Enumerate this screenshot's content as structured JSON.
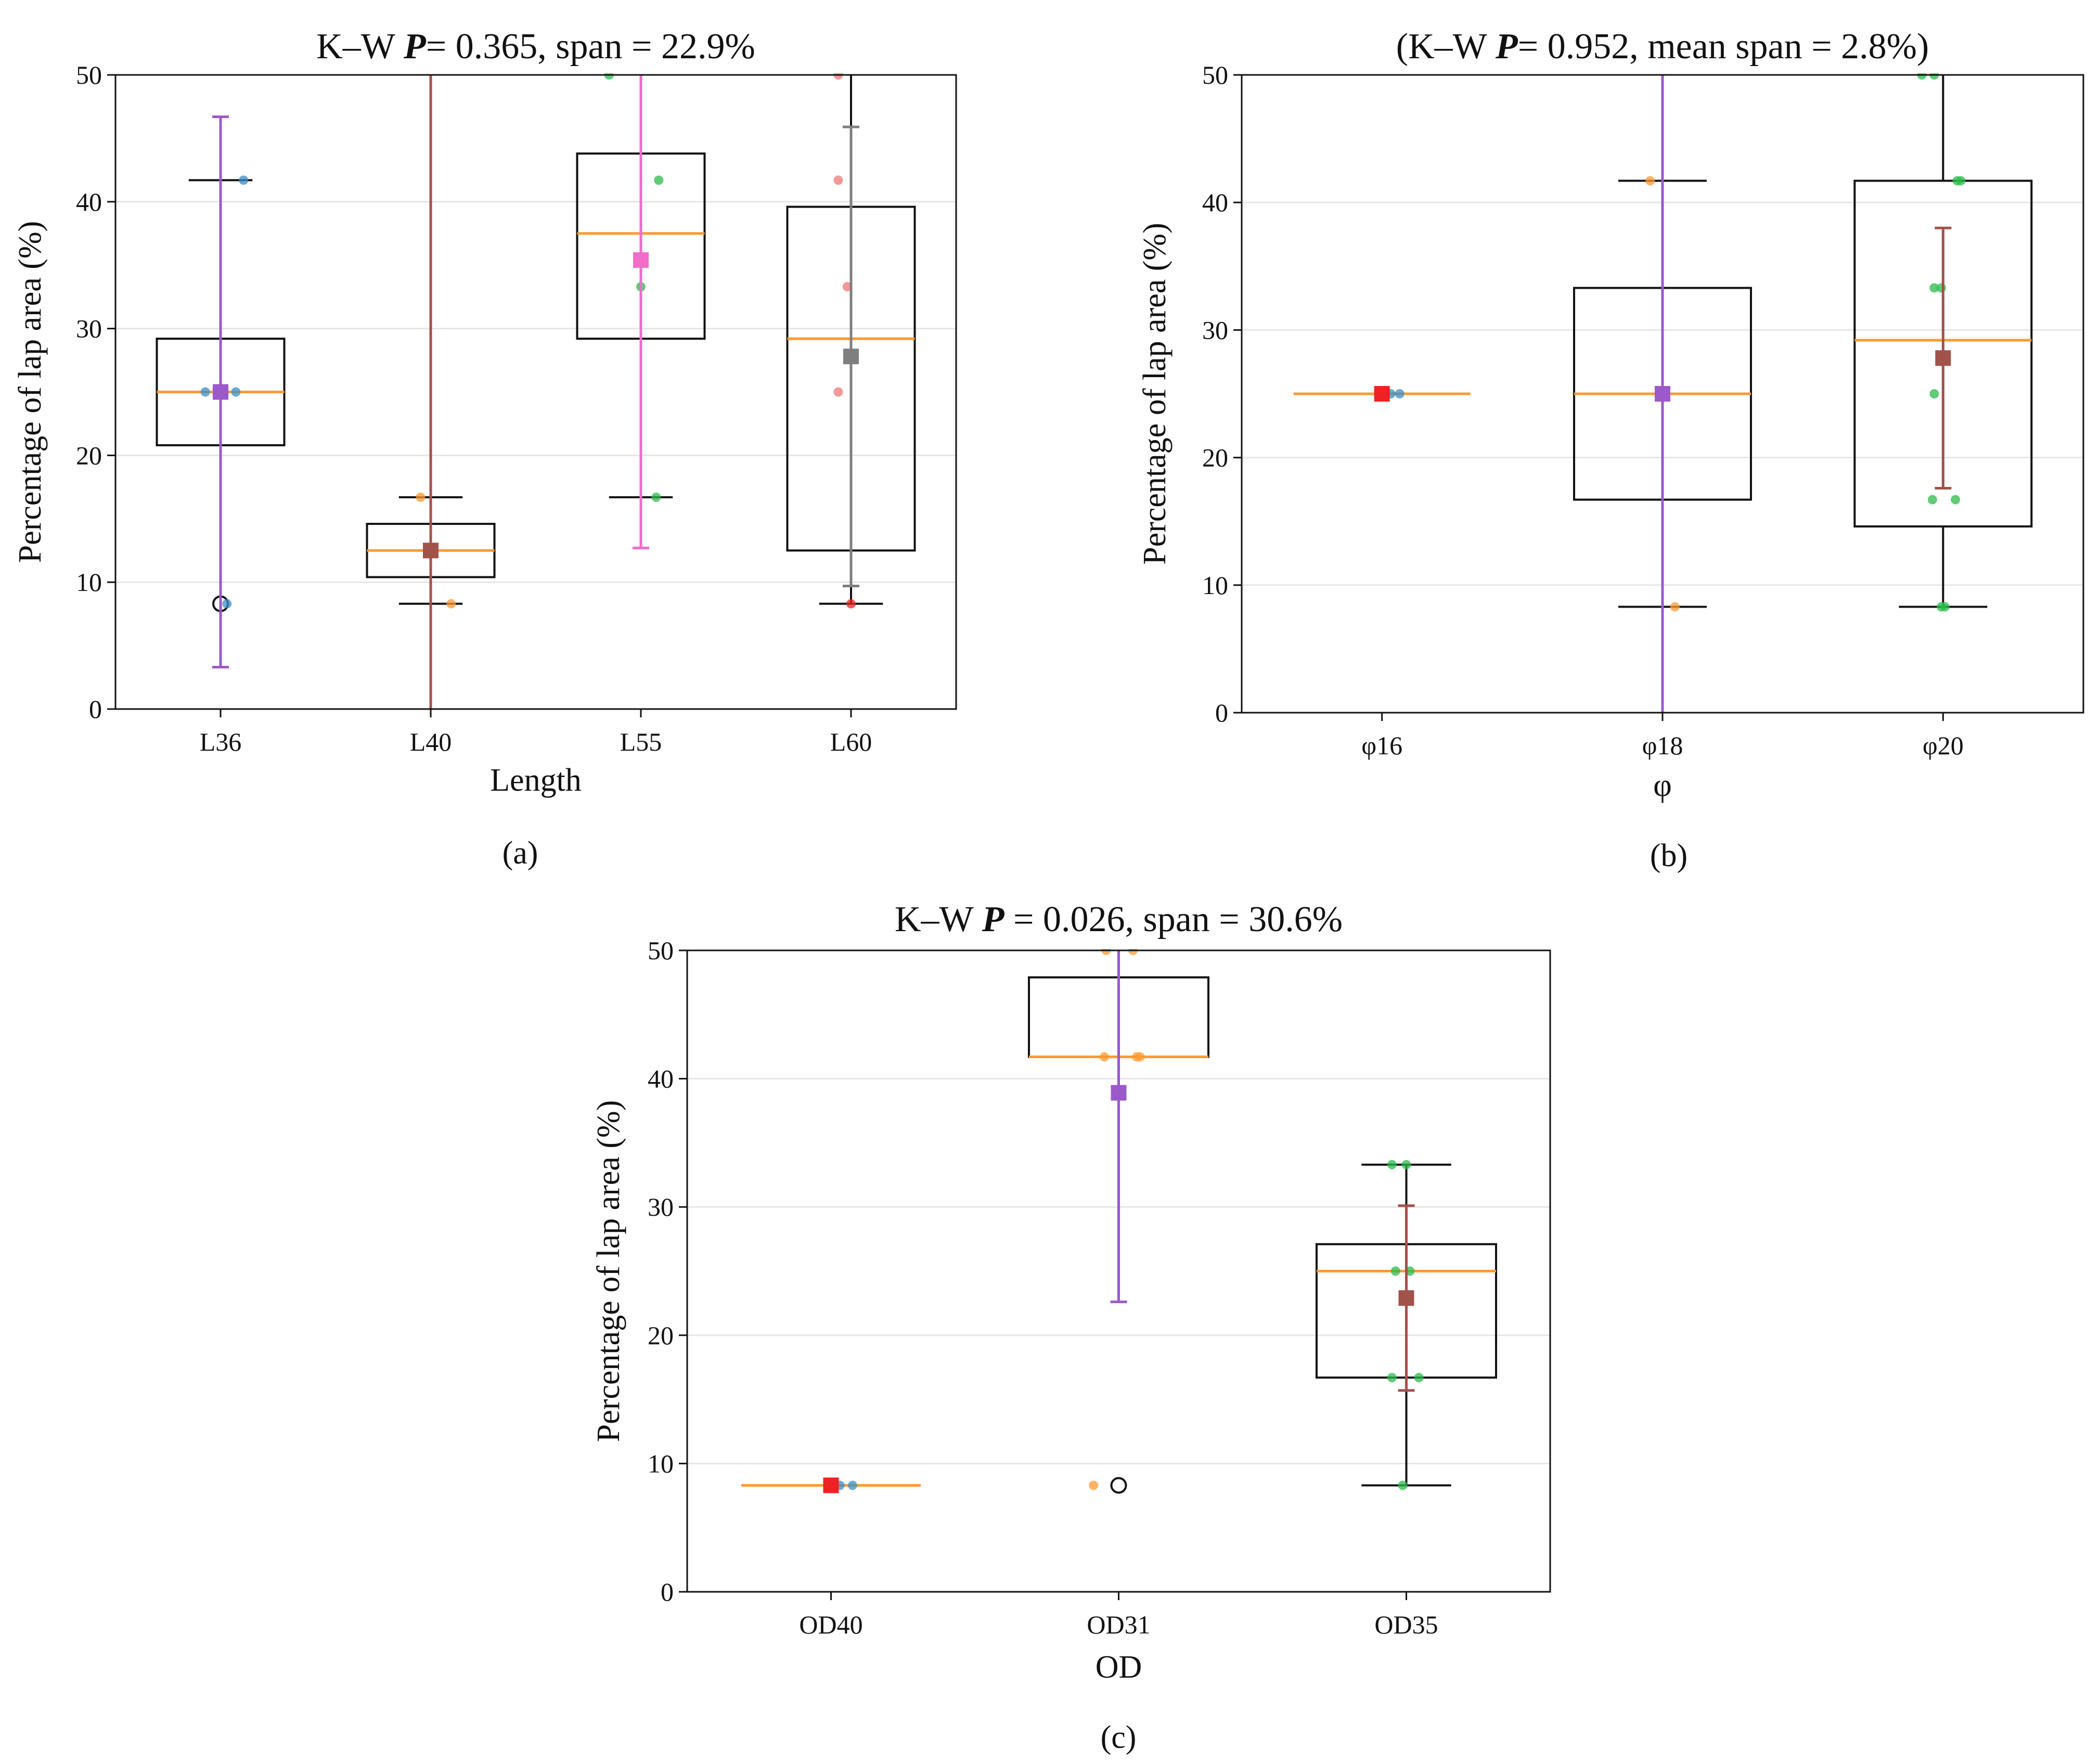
{
  "colors": {
    "purple": "#9b59c9",
    "brown": "#a0524b",
    "pink": "#f06dc9",
    "gray": "#7f7f7f",
    "red": "#ee2222",
    "orange": "#ff9933",
    "blue": "#3a8fc6",
    "green": "#2cbb4a",
    "salmon": "#ee7777",
    "grid": "#e6e6e6"
  },
  "chart_data": [
    {
      "id": "a",
      "type": "box",
      "caption": "(a)",
      "title": {
        "pre": "K–W ",
        "p": "P",
        "post": "= 0.365, span = 22.9%"
      },
      "xlabel": "Length",
      "ylabel": "Percentage of lap area (%)",
      "ylim": [
        0,
        50
      ],
      "yticks": [
        0,
        10,
        20,
        30,
        40,
        50
      ],
      "categories": [
        "L36",
        "L40",
        "L55",
        "L60"
      ],
      "boxes": [
        {
          "q1": 20.8,
          "median": 25.0,
          "q3": 29.2,
          "whisker_low": null,
          "whisker_high": 41.7,
          "mean": 25.0,
          "ci": [
            3.3,
            46.7
          ],
          "mean_color": "purple",
          "outliers": [
            8.3
          ],
          "points": [
            {
              "y": 25.0,
              "dx": -0.12,
              "c": "blue"
            },
            {
              "y": 25.0,
              "dx": 0.12,
              "c": "blue"
            },
            {
              "y": 41.7,
              "dx": 0.18,
              "c": "blue"
            },
            {
              "y": 8.3,
              "dx": 0.05,
              "c": "blue"
            }
          ]
        },
        {
          "q1": 10.4,
          "median": 12.5,
          "q3": 14.6,
          "whisker_low": 8.3,
          "whisker_high": 16.7,
          "mean": 12.5,
          "ci": [
            0,
            50
          ],
          "mean_color": "brown",
          "outliers": [],
          "points": [
            {
              "y": 16.7,
              "dx": -0.08,
              "c": "orange"
            },
            {
              "y": 8.3,
              "dx": 0.16,
              "c": "orange"
            }
          ]
        },
        {
          "q1": 29.2,
          "median": 37.5,
          "q3": 43.8,
          "whisker_low": 16.7,
          "whisker_high": null,
          "mean": 35.4,
          "ci": [
            12.7,
            50
          ],
          "mean_color": "pink",
          "outliers": [],
          "points": [
            {
              "y": 50.0,
              "dx": -0.25,
              "c": "green"
            },
            {
              "y": 41.7,
              "dx": 0.14,
              "c": "green"
            },
            {
              "y": 33.3,
              "dx": 0.0,
              "c": "green"
            },
            {
              "y": 16.7,
              "dx": 0.12,
              "c": "green"
            }
          ]
        },
        {
          "q1": 12.5,
          "median": 29.2,
          "q3": 39.6,
          "whisker_low": 8.3,
          "whisker_high": null,
          "mean": 27.8,
          "ci": [
            9.7,
            45.9
          ],
          "mean_color": "gray",
          "outliers": [],
          "points": [
            {
              "y": 50.0,
              "dx": -0.1,
              "c": "salmon"
            },
            {
              "y": 41.7,
              "dx": -0.1,
              "c": "salmon"
            },
            {
              "y": 33.3,
              "dx": -0.03,
              "c": "salmon"
            },
            {
              "y": 25.0,
              "dx": -0.1,
              "c": "salmon"
            },
            {
              "y": 8.3,
              "dx": 0.0,
              "c": "red"
            }
          ]
        }
      ]
    },
    {
      "id": "b",
      "type": "box",
      "caption": "(b)",
      "title": {
        "pre": "(K–W ",
        "p": "P",
        "post": "= 0.952, mean span = 2.8%)"
      },
      "xlabel": "φ",
      "ylabel": "Percentage of lap area (%)",
      "ylim": [
        0,
        50
      ],
      "yticks": [
        0,
        10,
        20,
        30,
        40,
        50
      ],
      "categories": [
        "φ16",
        "φ18",
        "φ20"
      ],
      "boxes": [
        {
          "q1": 25.0,
          "median": 25.0,
          "q3": 25.0,
          "whisker_low": null,
          "whisker_high": null,
          "mean": 25.0,
          "ci": null,
          "mean_color": "red",
          "outliers": [],
          "points": [
            {
              "y": 25.0,
              "dx": 0.05,
              "c": "blue"
            },
            {
              "y": 25.0,
              "dx": 0.1,
              "c": "blue"
            }
          ]
        },
        {
          "q1": 16.7,
          "median": 25.0,
          "q3": 33.3,
          "whisker_low": 8.3,
          "whisker_high": 41.7,
          "mean": 25.0,
          "ci": [
            0,
            50
          ],
          "mean_color": "purple",
          "outliers": [],
          "points": [
            {
              "y": 41.7,
              "dx": -0.07,
              "c": "orange"
            },
            {
              "y": 8.3,
              "dx": 0.07,
              "c": "orange"
            }
          ]
        },
        {
          "q1": 14.6,
          "median": 29.2,
          "q3": 41.7,
          "whisker_low": 8.3,
          "whisker_high": null,
          "mean": 27.8,
          "ci": [
            17.6,
            38.0
          ],
          "mean_color": "brown",
          "outliers": [],
          "points": [
            {
              "y": 50.0,
              "dx": -0.12,
              "c": "green"
            },
            {
              "y": 50.0,
              "dx": -0.05,
              "c": "green"
            },
            {
              "y": 41.7,
              "dx": 0.08,
              "c": "green"
            },
            {
              "y": 41.7,
              "dx": 0.1,
              "c": "green"
            },
            {
              "y": 33.3,
              "dx": -0.05,
              "c": "green"
            },
            {
              "y": 33.3,
              "dx": -0.01,
              "c": "green"
            },
            {
              "y": 25.0,
              "dx": -0.05,
              "c": "green"
            },
            {
              "y": 16.7,
              "dx": -0.06,
              "c": "green"
            },
            {
              "y": 16.7,
              "dx": 0.07,
              "c": "green"
            },
            {
              "y": 8.3,
              "dx": -0.01,
              "c": "green"
            },
            {
              "y": 8.3,
              "dx": 0.01,
              "c": "green"
            }
          ]
        }
      ]
    },
    {
      "id": "c",
      "type": "box",
      "caption": "(c)",
      "title": {
        "pre": "K–W ",
        "p": "P",
        "post": " = 0.026, span = 30.6%"
      },
      "xlabel": "OD",
      "ylabel": "Percentage of lap area (%)",
      "ylim": [
        0,
        50
      ],
      "yticks": [
        0,
        10,
        20,
        30,
        40,
        50
      ],
      "categories": [
        "OD40",
        "OD31",
        "OD35"
      ],
      "boxes": [
        {
          "q1": 8.3,
          "median": 8.3,
          "q3": 8.3,
          "whisker_low": null,
          "whisker_high": null,
          "mean": 8.3,
          "ci": null,
          "mean_color": "red",
          "outliers": [],
          "points": [
            {
              "y": 8.3,
              "dx": 0.05,
              "c": "blue"
            },
            {
              "y": 8.3,
              "dx": 0.12,
              "c": "blue"
            }
          ]
        },
        {
          "q1": 41.7,
          "median": 41.7,
          "q3": 47.9,
          "whisker_low": null,
          "whisker_high": null,
          "mean": 38.9,
          "ci": [
            22.6,
            50
          ],
          "mean_color": "purple",
          "outliers": [
            8.3
          ],
          "points": [
            {
              "y": 50.0,
              "dx": -0.07,
              "c": "orange"
            },
            {
              "y": 50.0,
              "dx": 0.08,
              "c": "orange"
            },
            {
              "y": 41.7,
              "dx": -0.08,
              "c": "orange"
            },
            {
              "y": 41.7,
              "dx": 0.1,
              "c": "orange"
            },
            {
              "y": 41.7,
              "dx": 0.12,
              "c": "orange"
            },
            {
              "y": 8.3,
              "dx": -0.14,
              "c": "orange"
            }
          ]
        },
        {
          "q1": 16.7,
          "median": 25.0,
          "q3": 27.1,
          "whisker_low": 8.3,
          "whisker_high": 33.3,
          "mean": 22.9,
          "ci": [
            15.7,
            30.1
          ],
          "mean_color": "brown",
          "outliers": [],
          "points": [
            {
              "y": 33.3,
              "dx": -0.08,
              "c": "green"
            },
            {
              "y": 33.3,
              "dx": 0.0,
              "c": "green"
            },
            {
              "y": 25.0,
              "dx": -0.06,
              "c": "green"
            },
            {
              "y": 25.0,
              "dx": 0.02,
              "c": "green"
            },
            {
              "y": 16.7,
              "dx": -0.08,
              "c": "green"
            },
            {
              "y": 16.7,
              "dx": 0.07,
              "c": "green"
            },
            {
              "y": 8.3,
              "dx": -0.02,
              "c": "green"
            }
          ]
        }
      ]
    }
  ]
}
